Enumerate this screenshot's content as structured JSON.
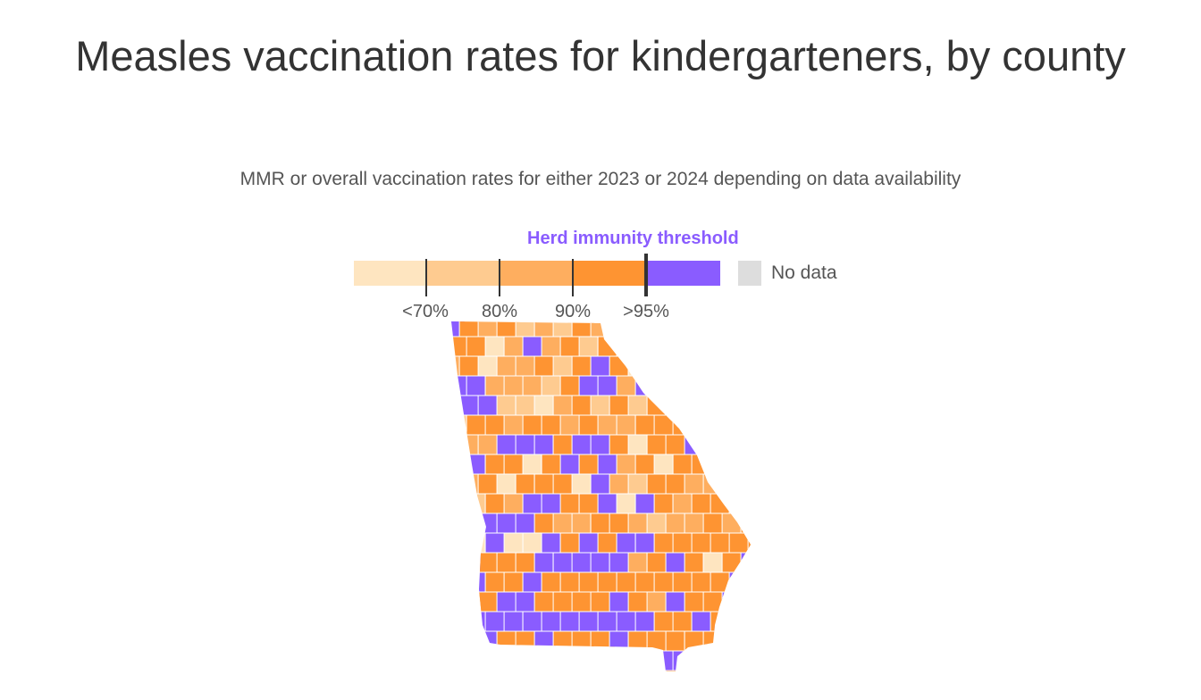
{
  "title": "Measles vaccination rates for kindergarteners, by county",
  "subtitle": "MMR or overall vaccination rates for either 2023 or 2024 depending on data availability",
  "legend": {
    "threshold_label": "Herd immunity threshold",
    "ticks": [
      "<70%",
      "80%",
      "90%",
      ">95%"
    ],
    "no_data_label": "No data",
    "colors": {
      "lt70": "#fee5c0",
      "70_80": "#fecb90",
      "80_90": "#feae5f",
      "90_95": "#fe9432",
      "gt95": "#8a5cff",
      "no_data": "#dddddd"
    }
  },
  "map": {
    "region": "Georgia",
    "unit": "county"
  }
}
